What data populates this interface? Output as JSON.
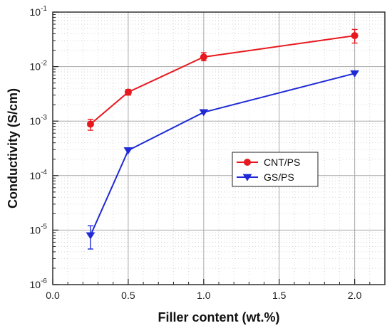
{
  "chart_data": {
    "type": "line",
    "xlabel": "Filler content (wt.%)",
    "ylabel": "Conductivity (S/cm)",
    "xlim": [
      0.0,
      2.2
    ],
    "ylim": [
      1e-06,
      0.1
    ],
    "y_scale": "log",
    "x_ticks": [
      0.0,
      0.5,
      1.0,
      1.5,
      2.0
    ],
    "x_tick_labels": [
      "0.0",
      "0.5",
      "1.0",
      "1.5",
      "2.0"
    ],
    "y_ticks": [
      1e-06,
      1e-05,
      0.0001,
      0.001,
      0.01,
      0.1
    ],
    "y_tick_labels": [
      {
        "base": "10",
        "exp": "-6"
      },
      {
        "base": "10",
        "exp": "-5"
      },
      {
        "base": "10",
        "exp": "-4"
      },
      {
        "base": "10",
        "exp": "-3"
      },
      {
        "base": "10",
        "exp": "-2"
      },
      {
        "base": "10",
        "exp": "-1"
      }
    ],
    "grid": true,
    "legend_position": "center-right",
    "series": [
      {
        "name": "CNT/PS",
        "color": "#e8191e",
        "marker": "circle",
        "x": [
          0.25,
          0.5,
          1.0,
          2.0
        ],
        "y": [
          0.00088,
          0.0034,
          0.015,
          0.037
        ],
        "err_low": [
          0.00068,
          0.003,
          0.0128,
          0.027
        ],
        "err_high": [
          0.00108,
          0.0038,
          0.018,
          0.048
        ]
      },
      {
        "name": "GS/PS",
        "color": "#1f2ad6",
        "marker": "triangle-down",
        "x": [
          0.25,
          0.5,
          1.0,
          2.0
        ],
        "y": [
          8e-06,
          0.00029,
          0.00145,
          0.0075
        ],
        "err_low": [
          4.5e-06,
          0.00029,
          0.00145,
          0.0075
        ],
        "err_high": [
          1.2e-05,
          0.00029,
          0.00145,
          0.0075
        ]
      }
    ]
  }
}
